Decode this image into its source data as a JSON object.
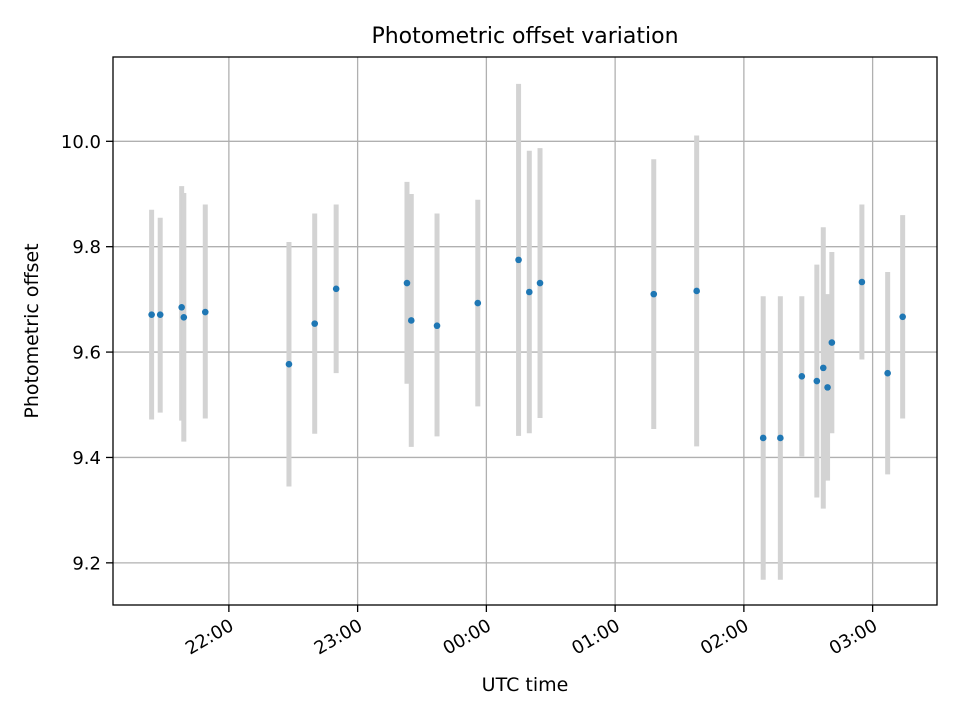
{
  "chart_data": {
    "type": "scatter",
    "title": "Photometric offset variation",
    "xlabel": "UTC time",
    "ylabel": "Photometric offset",
    "x_axis": {
      "kind": "time",
      "ticks": [
        "22:00",
        "23:00",
        "00:00",
        "01:00",
        "02:00",
        "03:00"
      ],
      "range": [
        "21:06",
        "03:30"
      ]
    },
    "y_axis": {
      "ticks": [
        "9.2",
        "9.4",
        "9.6",
        "9.8",
        "10.0"
      ],
      "range": [
        9.12,
        10.16
      ]
    },
    "grid": true,
    "colors": {
      "point": "#1f77b4",
      "error_bar": "#d3d3d3",
      "grid": "#b0b0b0"
    },
    "points": [
      {
        "x": "21:24",
        "y": 9.671,
        "ylo": 9.472,
        "yhi": 9.87
      },
      {
        "x": "21:28",
        "y": 9.671,
        "ylo": 9.485,
        "yhi": 9.855
      },
      {
        "x": "21:38",
        "y": 9.685,
        "ylo": 9.47,
        "yhi": 9.915
      },
      {
        "x": "21:39",
        "y": 9.666,
        "ylo": 9.43,
        "yhi": 9.902
      },
      {
        "x": "21:49",
        "y": 9.676,
        "ylo": 9.474,
        "yhi": 9.88
      },
      {
        "x": "22:28",
        "y": 9.577,
        "ylo": 9.345,
        "yhi": 9.809
      },
      {
        "x": "22:40",
        "y": 9.654,
        "ylo": 9.445,
        "yhi": 9.863
      },
      {
        "x": "22:50",
        "y": 9.72,
        "ylo": 9.56,
        "yhi": 9.88
      },
      {
        "x": "23:23",
        "y": 9.731,
        "ylo": 9.54,
        "yhi": 9.923
      },
      {
        "x": "23:25",
        "y": 9.66,
        "ylo": 9.42,
        "yhi": 9.9
      },
      {
        "x": "23:37",
        "y": 9.65,
        "ylo": 9.44,
        "yhi": 9.863
      },
      {
        "x": "23:56",
        "y": 9.693,
        "ylo": 9.497,
        "yhi": 9.889
      },
      {
        "x": "00:15",
        "y": 9.775,
        "ylo": 9.441,
        "yhi": 10.109
      },
      {
        "x": "00:20",
        "y": 9.714,
        "ylo": 9.446,
        "yhi": 9.982
      },
      {
        "x": "00:25",
        "y": 9.731,
        "ylo": 9.475,
        "yhi": 9.987
      },
      {
        "x": "01:18",
        "y": 9.71,
        "ylo": 9.454,
        "yhi": 9.966
      },
      {
        "x": "01:38",
        "y": 9.716,
        "ylo": 9.421,
        "yhi": 10.011
      },
      {
        "x": "02:09",
        "y": 9.437,
        "ylo": 9.168,
        "yhi": 9.706
      },
      {
        "x": "02:17",
        "y": 9.437,
        "ylo": 9.168,
        "yhi": 9.706
      },
      {
        "x": "02:27",
        "y": 9.554,
        "ylo": 9.402,
        "yhi": 9.706
      },
      {
        "x": "02:34",
        "y": 9.545,
        "ylo": 9.324,
        "yhi": 9.766
      },
      {
        "x": "02:37",
        "y": 9.57,
        "ylo": 9.303,
        "yhi": 9.837
      },
      {
        "x": "02:39",
        "y": 9.533,
        "ylo": 9.356,
        "yhi": 9.71
      },
      {
        "x": "02:41",
        "y": 9.618,
        "ylo": 9.446,
        "yhi": 9.79
      },
      {
        "x": "02:55",
        "y": 9.733,
        "ylo": 9.586,
        "yhi": 9.88
      },
      {
        "x": "03:07",
        "y": 9.56,
        "ylo": 9.368,
        "yhi": 9.752
      },
      {
        "x": "03:14",
        "y": 9.667,
        "ylo": 9.474,
        "yhi": 9.86
      }
    ]
  }
}
